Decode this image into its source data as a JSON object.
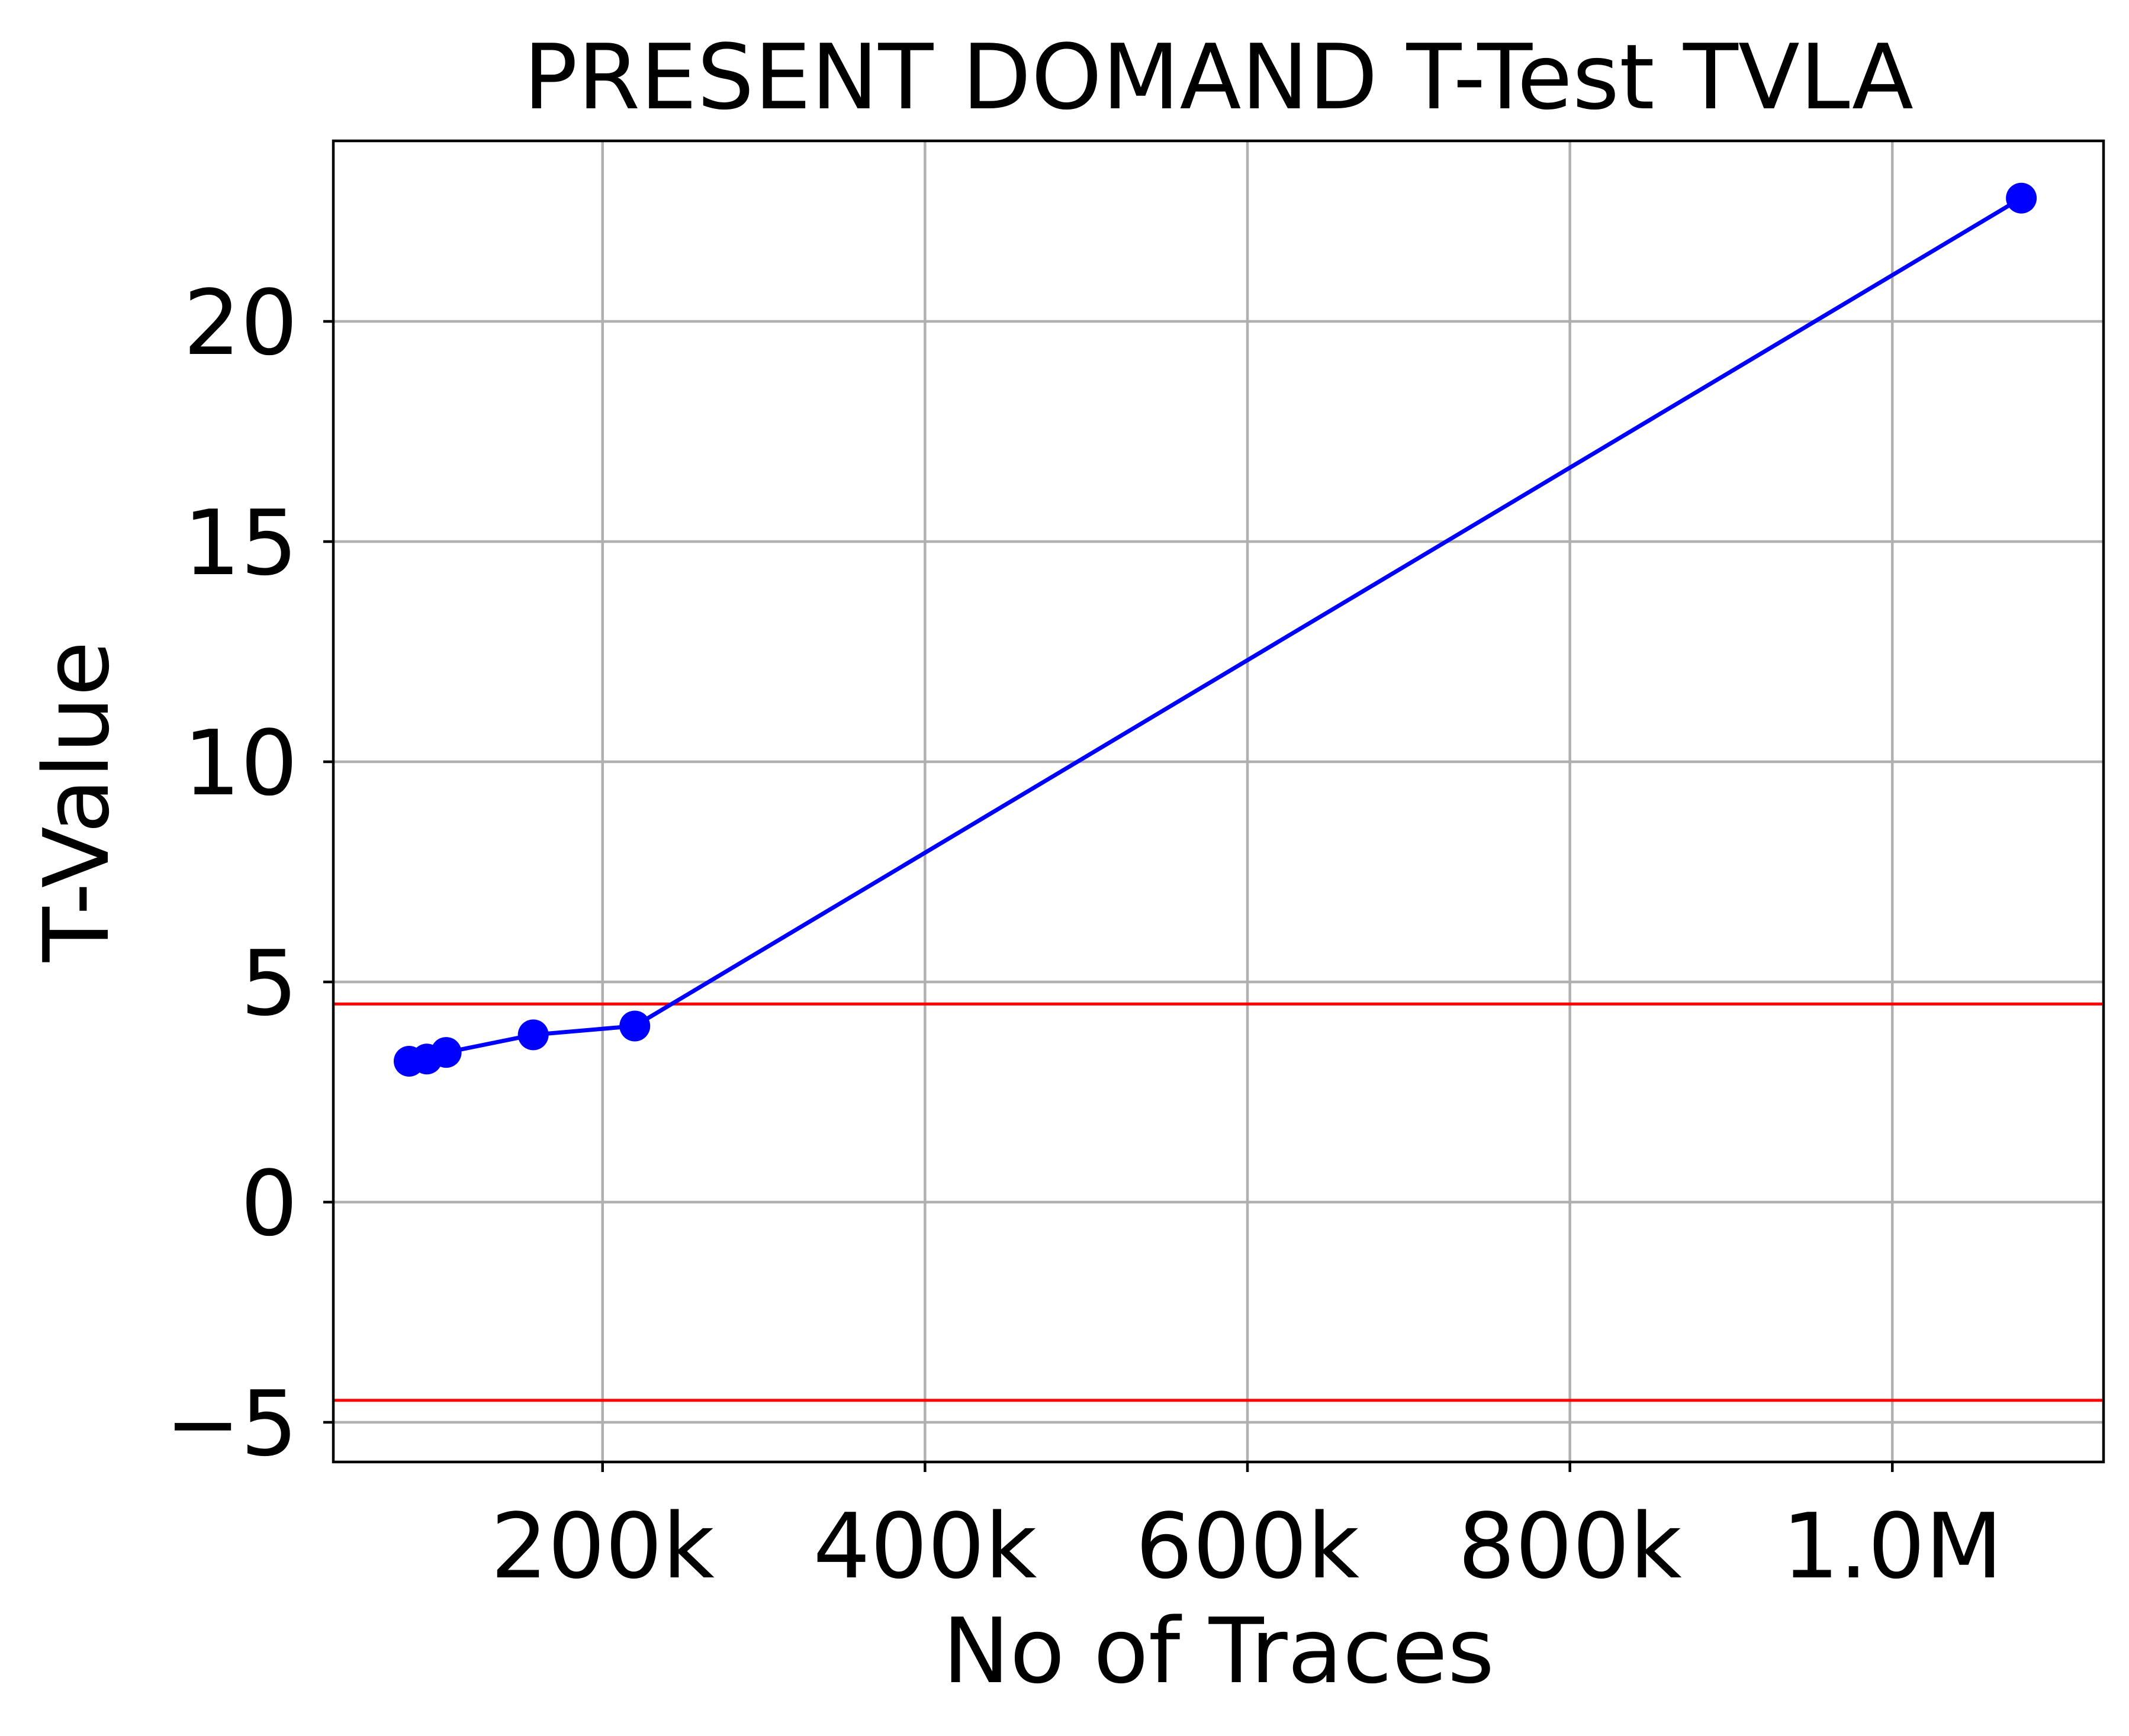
{
  "chart_data": {
    "type": "line",
    "title": "PRESENT DOMAND T-Test TVLA",
    "xlabel": "No of Traces",
    "ylabel": "T-Value",
    "xlim": [
      33000,
      1131000
    ],
    "ylim": [
      -5.9,
      24.1
    ],
    "xticks": [
      200000,
      400000,
      600000,
      800000,
      1000000
    ],
    "xtick_labels": [
      "200k",
      "400k",
      "600k",
      "800k",
      "1.0M"
    ],
    "yticks": [
      -5,
      0,
      5,
      10,
      15,
      20
    ],
    "ytick_labels": [
      "−5",
      "0",
      "5",
      "10",
      "15",
      "20"
    ],
    "grid": true,
    "series": [
      {
        "color": "#0000ff",
        "marker": "circle",
        "x": [
          80000,
          91000,
          103000,
          157000,
          220000,
          1080000
        ],
        "y": [
          3.2,
          3.25,
          3.4,
          3.8,
          4.0,
          22.8
        ]
      }
    ],
    "threshold_lines": [
      {
        "y": 4.5,
        "color": "#ff0000"
      },
      {
        "y": -4.5,
        "color": "#ff0000"
      }
    ]
  }
}
